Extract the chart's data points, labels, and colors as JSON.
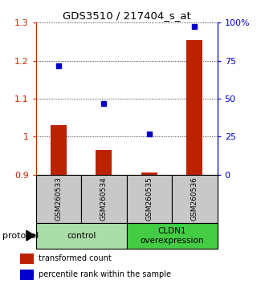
{
  "title": "GDS3510 / 217404_s_at",
  "samples": [
    "GSM260533",
    "GSM260534",
    "GSM260535",
    "GSM260536"
  ],
  "red_values": [
    1.03,
    0.965,
    0.905,
    1.255
  ],
  "blue_values": [
    0.715,
    0.47,
    0.27,
    0.975
  ],
  "ylim_left": [
    0.9,
    1.3
  ],
  "ylim_right": [
    0.0,
    1.0
  ],
  "yticks_left": [
    0.9,
    1.0,
    1.1,
    1.2,
    1.3
  ],
  "ytick_labels_left": [
    "0.9",
    "1",
    "1.1",
    "1.2",
    "1.3"
  ],
  "yticks_right": [
    0.0,
    0.25,
    0.5,
    0.75,
    1.0
  ],
  "ytick_labels_right": [
    "0",
    "25",
    "50",
    "75",
    "100%"
  ],
  "groups": [
    {
      "label": "control",
      "indices": [
        0,
        1
      ],
      "color": "#aaddaa"
    },
    {
      "label": "CLDN1\noverexpression",
      "indices": [
        2,
        3
      ],
      "color": "#44cc44"
    }
  ],
  "bar_color": "#bb2200",
  "dot_color": "#0000cc",
  "protocol_label": "protocol",
  "legend_red": "transformed count",
  "legend_blue": "percentile rank within the sample",
  "bar_width": 0.35,
  "red_color": "#bb2200",
  "blue_color": "#0000cc",
  "left_tick_color": "#cc2200",
  "right_tick_color": "#0000cc",
  "bg_color": "#ffffff"
}
